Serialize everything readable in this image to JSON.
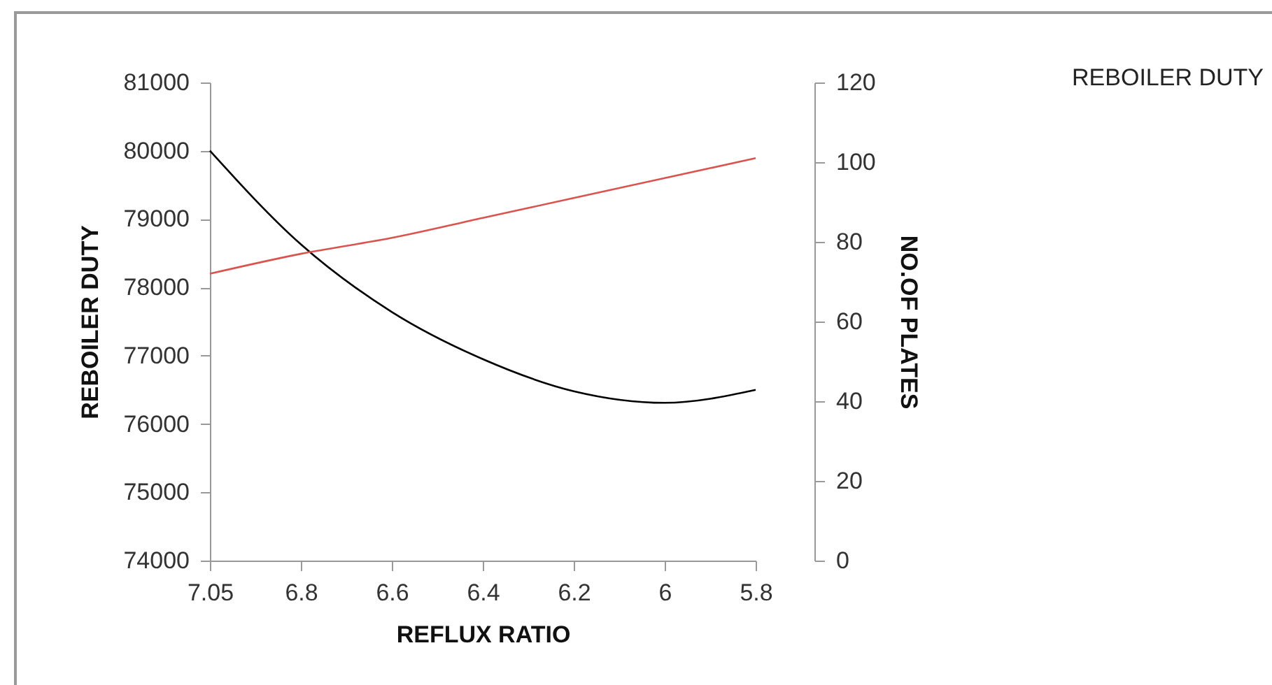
{
  "chart_data": {
    "type": "line",
    "xlabel": "REFLUX RATIO",
    "ylabel": "REBOILER DUTY",
    "y2label": "NO.OF  PLATES",
    "categories": [
      "7.05",
      "6.8",
      "6.6",
      "6.4",
      "6.2",
      "6",
      "5.8"
    ],
    "series": [
      {
        "color": "#000000",
        "values": [
          80000,
          78630,
          77640,
          76950,
          76480,
          76310,
          76500
        ]
      },
      {
        "color": "#d9534f",
        "axis": "y2",
        "values": [
          72,
          77,
          81,
          86,
          91,
          96,
          101
        ]
      }
    ],
    "ylim": [
      74000,
      81000
    ],
    "yticks": [
      74000,
      75000,
      76000,
      77000,
      78000,
      79000,
      80000,
      81000
    ],
    "y2lim": [
      0,
      120
    ],
    "y2ticks": [
      0,
      20,
      40,
      60,
      80,
      100,
      120
    ],
    "annotations": [
      "REBOILER DUTY"
    ],
    "grid": false,
    "marker": "none",
    "line_style": "solid"
  }
}
